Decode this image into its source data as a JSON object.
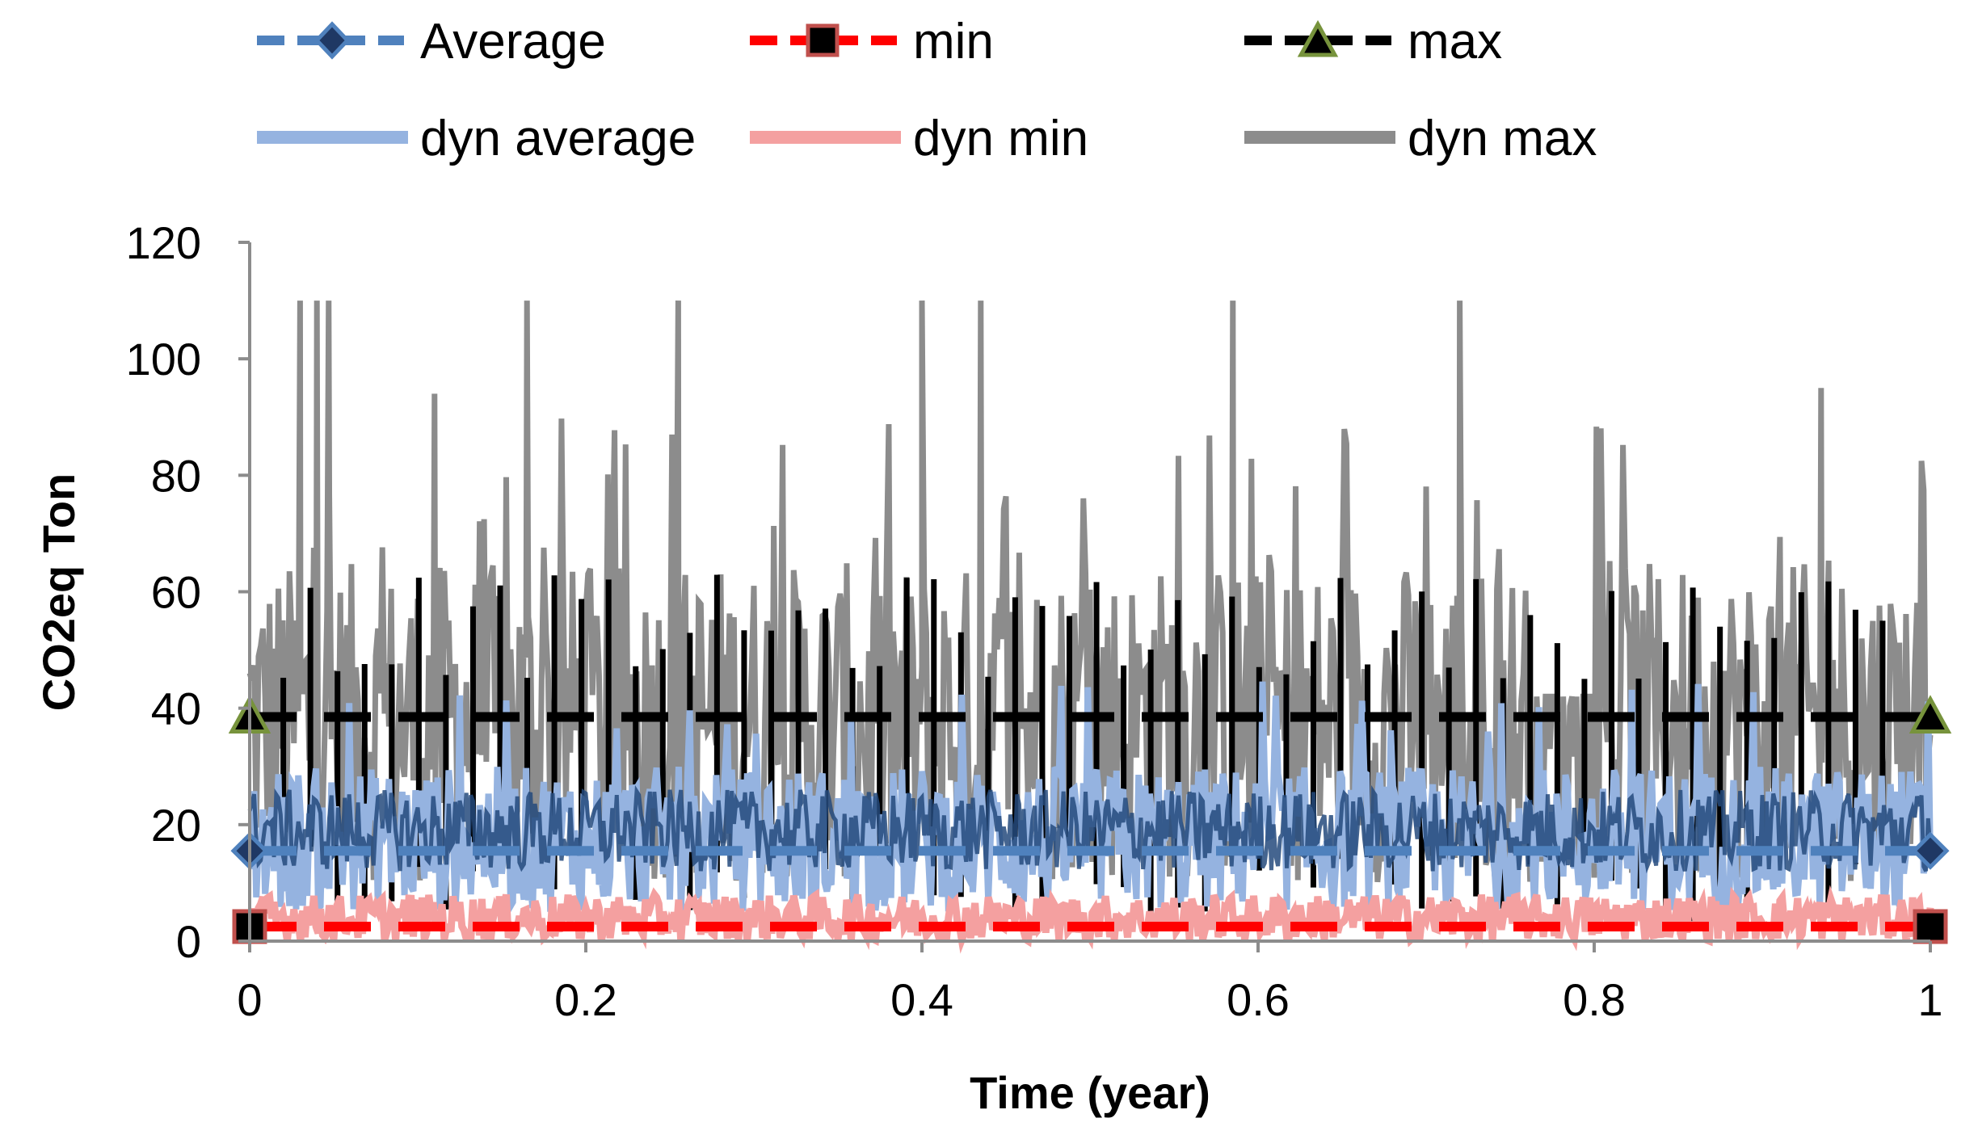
{
  "chart_data": {
    "type": "line",
    "title": "",
    "xlabel": "Time (year)",
    "ylabel": "CO2eq Ton",
    "xlim": [
      0,
      1
    ],
    "ylim": [
      0,
      120
    ],
    "xticks": [
      "0",
      "0.2",
      "0.4",
      "0.6",
      "0.8",
      "1"
    ],
    "yticks": [
      "0",
      "20",
      "40",
      "60",
      "80",
      "100",
      "120"
    ],
    "grid": false,
    "legend_position": "top",
    "static_series": [
      {
        "name": "Average",
        "style": "dashed",
        "marker": "diamond",
        "color": "#4f81bd",
        "x": [
          0,
          1
        ],
        "values": [
          15.5,
          15.5
        ]
      },
      {
        "name": "min",
        "style": "dashed",
        "marker": "square",
        "color": "#ff0000",
        "x": [
          0,
          1
        ],
        "values": [
          2.5,
          2.5
        ]
      },
      {
        "name": "max",
        "style": "dashed",
        "marker": "triangle",
        "color": "#000000",
        "x": [
          0,
          1
        ],
        "values": [
          38.5,
          38.5
        ]
      }
    ],
    "dynamic_series": [
      {
        "name": "dyn average",
        "color": "#95b3e0",
        "baseline": 15,
        "typical_range": [
          5,
          30
        ],
        "peak": 45
      },
      {
        "name": "dyn min",
        "color": "#f4a0a0",
        "baseline": 3,
        "typical_range": [
          0,
          8
        ],
        "peak": 9
      },
      {
        "name": "dyn max",
        "color": "#8c8c8c",
        "baseline": 38,
        "typical_range": [
          10,
          65
        ],
        "peak": 110,
        "peaks": [
          {
            "x": 0.03,
            "y": 110
          },
          {
            "x": 0.04,
            "y": 110
          },
          {
            "x": 0.047,
            "y": 110
          },
          {
            "x": 0.11,
            "y": 94
          },
          {
            "x": 0.165,
            "y": 110
          },
          {
            "x": 0.255,
            "y": 110
          },
          {
            "x": 0.4,
            "y": 110
          },
          {
            "x": 0.435,
            "y": 110
          },
          {
            "x": 0.585,
            "y": 110
          },
          {
            "x": 0.72,
            "y": 110
          },
          {
            "x": 0.935,
            "y": 95
          }
        ]
      }
    ]
  }
}
